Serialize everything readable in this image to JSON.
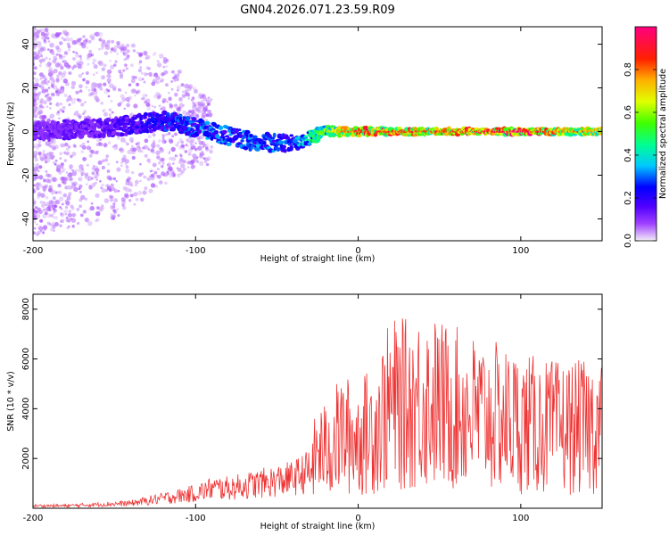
{
  "title": "GN04.2026.071.23.59.R09",
  "chart_data": [
    {
      "type": "heatmap",
      "xlabel": "Height of straight line (km)",
      "ylabel": "Frequency (Hz)",
      "xlim": [
        -200,
        150
      ],
      "ylim": [
        -50,
        48
      ],
      "xticks": [
        -200,
        -100,
        0,
        100
      ],
      "yticks": [
        -40,
        -20,
        0,
        20,
        40
      ],
      "colorbar": {
        "label": "Normalized spectral amplitude",
        "range": [
          0.0,
          1.0
        ],
        "ticks": [
          0.0,
          0.2,
          0.4,
          0.6,
          0.8
        ],
        "colors": [
          "#e8d8f8",
          "#a040ff",
          "#5000ff",
          "#0000ff",
          "#00c8ff",
          "#00ff90",
          "#40ff00",
          "#e0ff00",
          "#ffb000",
          "#ff2000",
          "#ff0080"
        ]
      },
      "ridge": [
        {
          "height_km": -200,
          "freq_hz": 0,
          "amplitude": 0.15,
          "spread_hz": 40
        },
        {
          "height_km": -150,
          "freq_hz": 2,
          "amplitude": 0.2,
          "spread_hz": 35
        },
        {
          "height_km": -120,
          "freq_hz": 5,
          "amplitude": 0.3,
          "spread_hz": 25
        },
        {
          "height_km": -100,
          "freq_hz": 2,
          "amplitude": 0.35,
          "spread_hz": 15
        },
        {
          "height_km": -80,
          "freq_hz": -2,
          "amplitude": 0.35,
          "spread_hz": 10
        },
        {
          "height_km": -60,
          "freq_hz": -5,
          "amplitude": 0.35,
          "spread_hz": 10
        },
        {
          "height_km": -40,
          "freq_hz": -5,
          "amplitude": 0.35,
          "spread_hz": 10
        },
        {
          "height_km": -20,
          "freq_hz": 0,
          "amplitude": 0.6,
          "spread_hz": 5
        },
        {
          "height_km": 0,
          "freq_hz": 0,
          "amplitude": 0.85,
          "spread_hz": 4
        },
        {
          "height_km": 50,
          "freq_hz": 0,
          "amplitude": 0.8,
          "spread_hz": 3
        },
        {
          "height_km": 100,
          "freq_hz": 0,
          "amplitude": 0.9,
          "spread_hz": 3
        },
        {
          "height_km": 150,
          "freq_hz": 0,
          "amplitude": 0.7,
          "spread_hz": 3
        }
      ]
    },
    {
      "type": "line",
      "xlabel": "Height of straight line (km)",
      "ylabel": "SNR (10 * v/v)",
      "xlim": [
        -200,
        150
      ],
      "ylim": [
        0,
        8600
      ],
      "xticks": [
        -200,
        -100,
        0,
        100
      ],
      "yticks": [
        2000,
        4000,
        6000,
        8000
      ],
      "color": "#ee3333",
      "series": [
        {
          "name": "SNR",
          "x": [
            -200,
            -180,
            -160,
            -140,
            -120,
            -110,
            -100,
            -90,
            -80,
            -60,
            -40,
            -30,
            -25,
            -20,
            -10,
            0,
            10,
            20,
            30,
            40,
            60,
            80,
            100,
            120,
            140,
            150
          ],
          "y": [
            100,
            100,
            150,
            200,
            400,
            500,
            600,
            800,
            800,
            1000,
            1200,
            1500,
            2500,
            2500,
            3200,
            3000,
            3500,
            4500,
            4500,
            4700,
            4300,
            4000,
            3700,
            3500,
            3500,
            3700
          ]
        }
      ]
    }
  ]
}
